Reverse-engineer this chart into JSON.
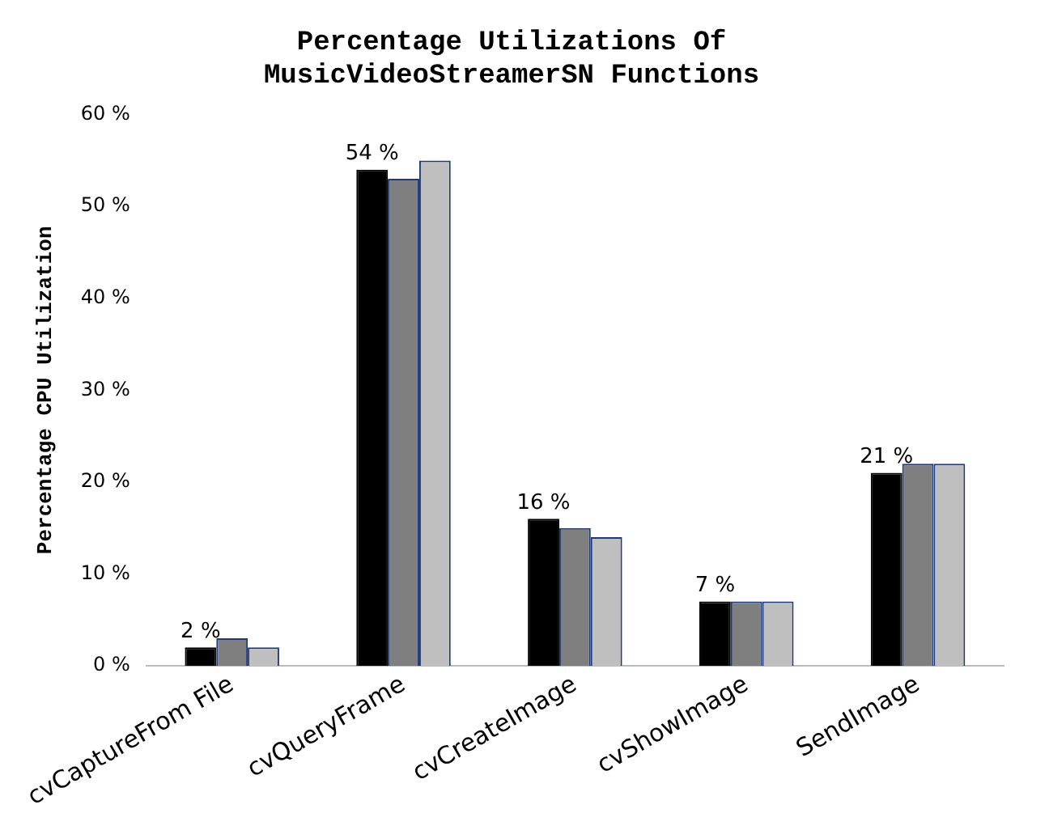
{
  "chart_data": {
    "type": "bar",
    "title": "Percentage Utilizations Of\nMusicVideoStreamerSN Functions",
    "ylabel": "Percentage CPU Utilization",
    "categories": [
      "cvCaptureFrom File",
      "cvQueryFrame",
      "cvCreateImage",
      "cvShowImage",
      "SendImage"
    ],
    "series": [
      {
        "color": "#000000",
        "values": [
          2,
          54,
          16,
          7,
          21
        ],
        "value_labels": [
          "2 %",
          "54 %",
          "16 %",
          "7 %",
          "21 %"
        ]
      },
      {
        "color": "#7f7f7f",
        "values": [
          3,
          53,
          15,
          7,
          22
        ]
      },
      {
        "color": "#bfbfbf",
        "values": [
          2,
          55,
          14,
          7,
          22
        ]
      }
    ],
    "ylim": [
      0,
      60
    ],
    "yticks": [
      {
        "value": 0,
        "label": "0 %"
      },
      {
        "value": 10,
        "label": "10 %"
      },
      {
        "value": 20,
        "label": "20 %"
      },
      {
        "value": 30,
        "label": "30 %"
      },
      {
        "value": 40,
        "label": "40 %"
      },
      {
        "value": 50,
        "label": "50 %"
      },
      {
        "value": 60,
        "label": "60 %"
      }
    ],
    "grid": false,
    "legend": false
  }
}
